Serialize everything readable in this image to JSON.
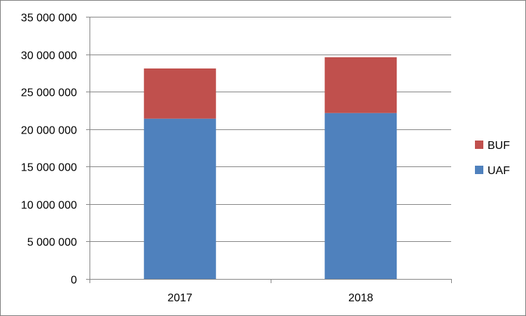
{
  "chart_data": {
    "type": "bar",
    "stacked": true,
    "title": "",
    "xlabel": "",
    "ylabel": "",
    "categories": [
      "2017",
      "2018"
    ],
    "series": [
      {
        "name": "UAF",
        "color": "#4f81bd",
        "values": [
          21400000,
          22150000
        ]
      },
      {
        "name": "BUF",
        "color": "#c0504d",
        "values": [
          6700000,
          7450000
        ]
      }
    ],
    "ylim": [
      0,
      35000000
    ],
    "yticks": [
      0,
      5000000,
      10000000,
      15000000,
      20000000,
      25000000,
      30000000,
      35000000
    ],
    "ytick_labels": [
      "0",
      "5 000 000",
      "10 000 000",
      "15 000 000",
      "20 000 000",
      "25 000 000",
      "30 000 000",
      "35 000 000"
    ],
    "grid": true,
    "legend_position": "right",
    "legend_order": [
      "BUF",
      "UAF"
    ]
  }
}
